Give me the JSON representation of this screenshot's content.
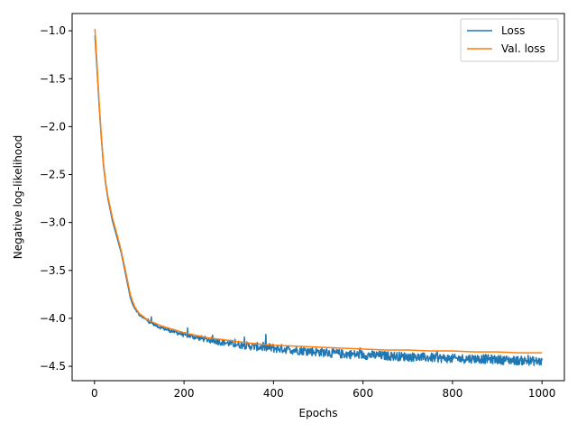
{
  "chart_data": {
    "type": "line",
    "title": "",
    "xlabel": "Epochs",
    "ylabel": "Negative log-likelihood",
    "xlim": [
      -50,
      1050
    ],
    "ylim": [
      -4.65,
      -0.82
    ],
    "xticks": [
      0,
      200,
      400,
      600,
      800,
      1000
    ],
    "xtick_labels": [
      "0",
      "200",
      "400",
      "600",
      "800",
      "1000"
    ],
    "yticks": [
      -1.0,
      -1.5,
      -2.0,
      -2.5,
      -3.0,
      -3.5,
      -4.0,
      -4.5
    ],
    "ytick_labels": [
      "−1.0",
      "−1.5",
      "−2.0",
      "−2.5",
      "−3.0",
      "−3.5",
      "−4.0",
      "−4.5"
    ],
    "grid": false,
    "legend": {
      "position": "top-right"
    },
    "series": [
      {
        "name": "Loss",
        "color": "#1f77b4",
        "noisy": true,
        "x": [
          1,
          5,
          10,
          15,
          20,
          25,
          30,
          40,
          50,
          60,
          70,
          80,
          85,
          90,
          100,
          120,
          150,
          200,
          250,
          300,
          350,
          400,
          450,
          500,
          550,
          600,
          650,
          700,
          750,
          800,
          850,
          900,
          950,
          1000
        ],
        "values": [
          -1.05,
          -1.35,
          -1.75,
          -2.1,
          -2.4,
          -2.6,
          -2.75,
          -2.98,
          -3.15,
          -3.32,
          -3.55,
          -3.78,
          -3.85,
          -3.9,
          -3.96,
          -4.03,
          -4.1,
          -4.17,
          -4.22,
          -4.26,
          -4.29,
          -4.31,
          -4.33,
          -4.35,
          -4.37,
          -4.38,
          -4.39,
          -4.4,
          -4.41,
          -4.42,
          -4.42,
          -4.43,
          -4.44,
          -4.45
        ]
      },
      {
        "name": "Val. loss",
        "color": "#ff7f0e",
        "noisy": false,
        "x": [
          1,
          5,
          10,
          15,
          20,
          25,
          30,
          40,
          50,
          60,
          70,
          80,
          85,
          90,
          100,
          120,
          150,
          200,
          250,
          300,
          350,
          400,
          450,
          500,
          550,
          600,
          650,
          700,
          750,
          800,
          850,
          900,
          950,
          1000
        ],
        "values": [
          -0.98,
          -1.3,
          -1.72,
          -2.08,
          -2.38,
          -2.58,
          -2.73,
          -2.95,
          -3.12,
          -3.3,
          -3.52,
          -3.75,
          -3.82,
          -3.88,
          -3.95,
          -4.02,
          -4.08,
          -4.15,
          -4.2,
          -4.23,
          -4.26,
          -4.28,
          -4.29,
          -4.3,
          -4.31,
          -4.32,
          -4.33,
          -4.33,
          -4.34,
          -4.34,
          -4.35,
          -4.35,
          -4.36,
          -4.36
        ]
      }
    ]
  }
}
